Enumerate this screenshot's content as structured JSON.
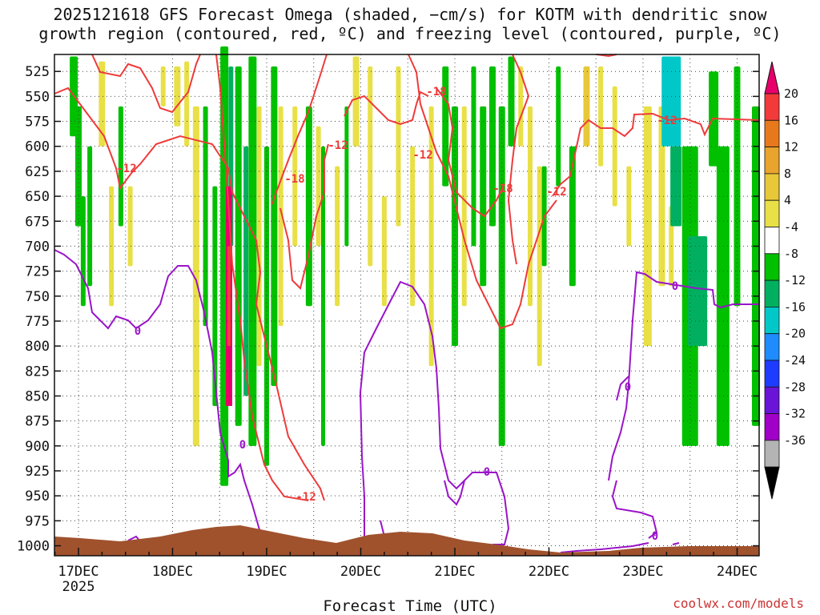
{
  "chart_data": {
    "type": "heatmap",
    "title_lines": [
      "2025121618 GFS Forecast Omega (shaded, −cm/s) for KOTM with dendritic snow",
      "growth region (contoured, red, ºC) and freezing level (contoured, purple, ºC)"
    ],
    "xlabel": "Forecast Time (UTC)",
    "x_ticks": [
      "17DEC",
      "18DEC",
      "19DEC",
      "20DEC",
      "21DEC",
      "22DEC",
      "23DEC",
      "24DEC"
    ],
    "x_tick_year": "2025",
    "y_ticks": [
      525,
      550,
      575,
      600,
      625,
      650,
      675,
      700,
      725,
      750,
      775,
      800,
      825,
      850,
      875,
      900,
      925,
      950,
      975,
      1000
    ],
    "y_axis": "pressure (hPa), inverted",
    "colorbar": {
      "ticks": [
        20,
        16,
        12,
        8,
        4,
        -4,
        -8,
        -12,
        -16,
        -20,
        -24,
        -28,
        -32,
        -36
      ],
      "colors": [
        "#f23a3a",
        "#e8781c",
        "#e8a42c",
        "#e8c838",
        "#e8e046",
        "#ffffff",
        "#00c000",
        "#00b060",
        "#00c8c8",
        "#1e8cff",
        "#1e3cff",
        "#6a14d8",
        "#a000c8",
        "#b4b4b4"
      ],
      "over_color": "#e8006a",
      "under_color": "#000000"
    },
    "contour_labels_red": [
      "-12",
      "-12",
      "-18",
      "-12",
      "-18",
      "-12",
      "-18",
      "-12",
      "-12",
      "-12"
    ],
    "contour_labels_purple": [
      "0",
      "0",
      "0",
      "0",
      "0",
      "0"
    ],
    "terrain_color": "#a0522d"
  },
  "credit": "coolwx.com/models"
}
